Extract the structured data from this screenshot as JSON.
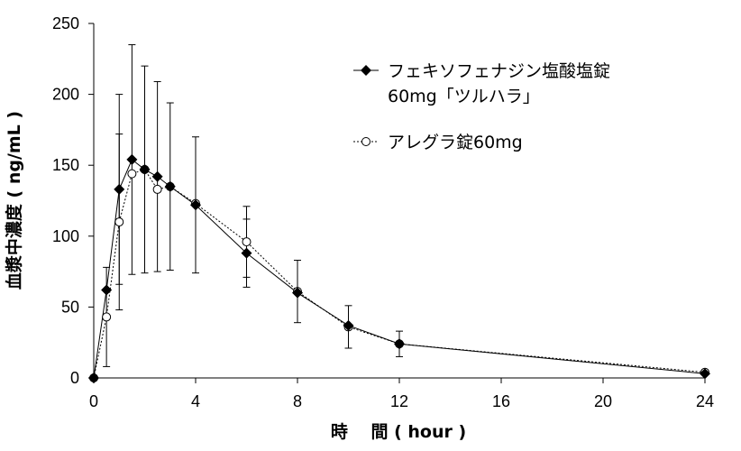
{
  "chart_data": {
    "type": "line",
    "xlabel": "時　 間 ( hour )",
    "ylabel": "血漿中濃度 ( ng/mL )",
    "xlim": [
      0,
      24
    ],
    "ylim": [
      0,
      250
    ],
    "x_ticks": [
      0,
      4,
      8,
      12,
      16,
      20,
      24
    ],
    "y_ticks": [
      0,
      50,
      100,
      150,
      200,
      250
    ],
    "grid": false,
    "legend_position": "top-right",
    "series": [
      {
        "name": "フェキソフェナジン塩酸塩錠",
        "name_line2": "60mg「ツルハラ」",
        "marker": "filled-diamond",
        "line_style": "solid",
        "x": [
          0,
          0.5,
          1,
          1.5,
          2,
          2.5,
          3,
          4,
          6,
          8,
          10,
          12,
          24
        ],
        "y": [
          0,
          62,
          133,
          154,
          147,
          142,
          135,
          122,
          88,
          60,
          37,
          24,
          3
        ],
        "error": [
          0,
          0,
          67,
          81,
          73,
          67,
          59,
          48,
          24,
          0,
          0,
          0,
          0
        ]
      },
      {
        "name": "アレグラ錠60mg",
        "marker": "open-circle",
        "line_style": "dashed",
        "x": [
          0,
          0.5,
          1,
          1.5,
          2,
          2.5,
          3,
          4,
          6,
          8,
          10,
          12,
          24
        ],
        "y": [
          0,
          43,
          110,
          144,
          147,
          133,
          135,
          123,
          96,
          61,
          36,
          24,
          4
        ],
        "error": [
          0,
          35,
          62,
          0,
          0,
          0,
          0,
          0,
          25,
          22,
          15,
          9,
          0
        ]
      }
    ]
  }
}
